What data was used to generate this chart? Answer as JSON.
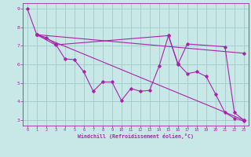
{
  "xlabel": "Windchill (Refroidissement éolien,°C)",
  "xlim": [
    -0.5,
    23.5
  ],
  "ylim": [
    2.7,
    9.3
  ],
  "xticks": [
    0,
    1,
    2,
    3,
    4,
    5,
    6,
    7,
    8,
    9,
    10,
    11,
    12,
    13,
    14,
    15,
    16,
    17,
    18,
    19,
    20,
    21,
    22,
    23
  ],
  "yticks": [
    3,
    4,
    5,
    6,
    7,
    8,
    9
  ],
  "line_color": "#aa22aa",
  "bg_color": "#c8e8e8",
  "grid_color": "#99cccc",
  "lines": [
    {
      "x": [
        0,
        1,
        2,
        3,
        4,
        5,
        6,
        7,
        8,
        9,
        10,
        11,
        12,
        13,
        14,
        15,
        16,
        17,
        18,
        19,
        20,
        21,
        22,
        23
      ],
      "y": [
        9.0,
        7.6,
        7.45,
        7.1,
        6.3,
        6.25,
        5.6,
        4.55,
        5.05,
        5.05,
        4.05,
        4.7,
        4.55,
        4.6,
        5.9,
        7.55,
        6.05,
        5.5,
        5.6,
        5.35,
        4.4,
        3.4,
        3.1,
        2.95
      ]
    },
    {
      "x": [
        1,
        23
      ],
      "y": [
        7.6,
        6.6
      ]
    },
    {
      "x": [
        1,
        23
      ],
      "y": [
        7.6,
        3.0
      ]
    },
    {
      "x": [
        1,
        3,
        15,
        16,
        17,
        21,
        22,
        23
      ],
      "y": [
        7.6,
        7.05,
        7.55,
        6.0,
        7.1,
        6.95,
        3.4,
        3.0
      ]
    }
  ]
}
